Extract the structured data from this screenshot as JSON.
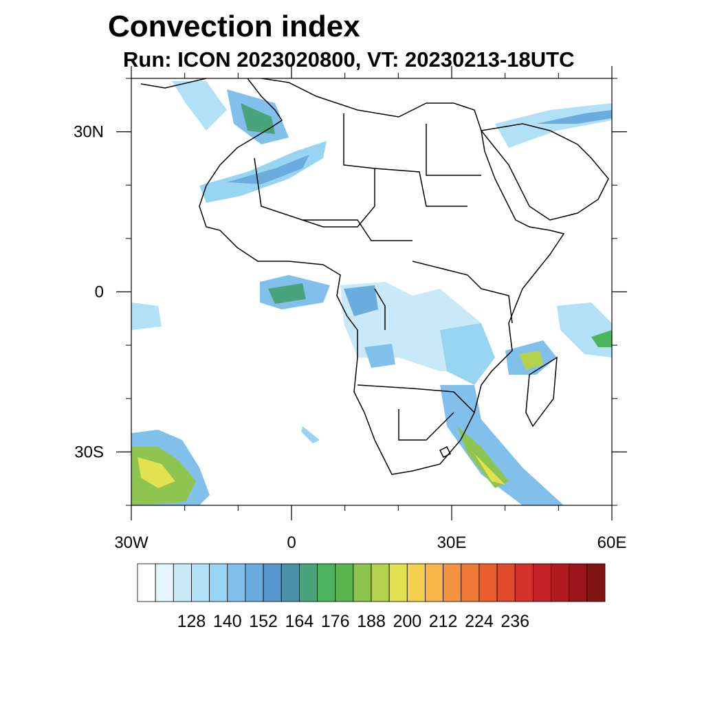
{
  "title": "Convection index",
  "subtitle": "Run: ICON 2023020800,  VT: 20230213-18UTC",
  "map": {
    "lon_range": [
      -30,
      60
    ],
    "lat_range": [
      -40,
      40
    ],
    "x_ticks": [
      {
        "lon": -30,
        "label": "30W"
      },
      {
        "lon": 0,
        "label": "0"
      },
      {
        "lon": 30,
        "label": "30E"
      },
      {
        "lon": 60,
        "label": "60E"
      }
    ],
    "y_ticks": [
      {
        "lat": 30,
        "label": "30N"
      },
      {
        "lat": 0,
        "label": "0"
      },
      {
        "lat": -30,
        "label": "30S"
      }
    ],
    "minor_lon_step": 10,
    "minor_lat_step": 10
  },
  "colorbar": {
    "colors": [
      "#ffffff",
      "#e6f4fb",
      "#c9e9f8",
      "#b2e0f6",
      "#97d5f3",
      "#80c0ea",
      "#6aacde",
      "#5797cd",
      "#4a90a6",
      "#4aa47b",
      "#4db35f",
      "#5ab64f",
      "#8dc550",
      "#b5d24e",
      "#e2e14f",
      "#f5cf4f",
      "#f8b64a",
      "#f59440",
      "#f07935",
      "#ea5d2e",
      "#e04a2b",
      "#d6302b",
      "#c42127",
      "#b0191f",
      "#9a1519",
      "#831414"
    ],
    "labels": [
      "128",
      "140",
      "152",
      "164",
      "176",
      "188",
      "200",
      "212",
      "224",
      "236"
    ]
  }
}
